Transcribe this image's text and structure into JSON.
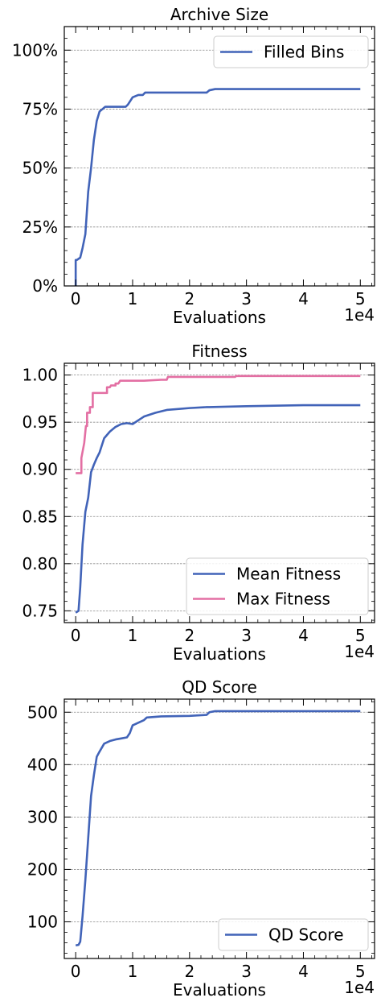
{
  "chart_data": [
    {
      "type": "line",
      "title": "Archive Size",
      "xlabel": "Evaluations",
      "x_offset_label": "1e4",
      "xlim": [
        -0.2,
        5.25
      ],
      "ylim": [
        0,
        110
      ],
      "x_ticks": [
        0,
        1,
        2,
        3,
        4,
        5
      ],
      "x_tick_labels": [
        "0",
        "1",
        "2",
        "3",
        "4",
        "5"
      ],
      "y_ticks": [
        0,
        25,
        50,
        75,
        100
      ],
      "y_tick_labels": [
        "0%",
        "25%",
        "50%",
        "75%",
        "100%"
      ],
      "grid": "horizontal-dashed",
      "legend": "top-right",
      "series": [
        {
          "name": "Filled Bins",
          "color": "#4163b8",
          "x": [
            0,
            0,
            0.02,
            0.08,
            0.12,
            0.17,
            0.22,
            0.27,
            0.32,
            0.37,
            0.42,
            0.47,
            0.52,
            0.6,
            0.7,
            0.8,
            0.88,
            0.92,
            1.0,
            1.1,
            1.18,
            1.22,
            1.5,
            2.0,
            2.3,
            2.35,
            2.45,
            3.0,
            4.0,
            5.0
          ],
          "y": [
            0,
            11,
            11,
            12,
            16,
            22,
            40,
            50,
            62,
            70,
            74,
            75,
            76,
            76,
            76,
            76,
            76,
            77,
            80,
            81,
            81,
            82,
            82,
            82,
            82,
            83,
            83.5,
            83.5,
            83.5,
            83.5
          ]
        }
      ]
    },
    {
      "type": "line",
      "title": "Fitness",
      "xlabel": "Evaluations",
      "x_offset_label": "1e4",
      "xlim": [
        -0.2,
        5.25
      ],
      "ylim": [
        0.7375,
        1.0125
      ],
      "x_ticks": [
        0,
        1,
        2,
        3,
        4,
        5
      ],
      "x_tick_labels": [
        "0",
        "1",
        "2",
        "3",
        "4",
        "5"
      ],
      "y_ticks": [
        0.75,
        0.8,
        0.85,
        0.9,
        0.95,
        1.0
      ],
      "y_tick_labels": [
        "0.75",
        "0.80",
        "0.85",
        "0.90",
        "0.95",
        "1.00"
      ],
      "grid": "horizontal-dashed",
      "legend": "bottom-right",
      "series": [
        {
          "name": "Mean Fitness",
          "color": "#4163b8",
          "x": [
            0,
            0.05,
            0.08,
            0.12,
            0.17,
            0.22,
            0.27,
            0.32,
            0.37,
            0.42,
            0.5,
            0.6,
            0.7,
            0.8,
            0.9,
            1.0,
            1.1,
            1.2,
            1.4,
            1.6,
            2.0,
            2.3,
            2.35,
            3.0,
            4.0,
            5.0
          ],
          "y": [
            0.748,
            0.75,
            0.775,
            0.82,
            0.855,
            0.87,
            0.897,
            0.905,
            0.912,
            0.918,
            0.933,
            0.94,
            0.945,
            0.948,
            0.949,
            0.948,
            0.952,
            0.956,
            0.96,
            0.963,
            0.965,
            0.966,
            0.966,
            0.967,
            0.968,
            0.968
          ]
        },
        {
          "name": "Max Fitness",
          "color": "#e36fa3",
          "x": [
            0,
            0.1,
            0.1,
            0.15,
            0.18,
            0.2,
            0.2,
            0.25,
            0.25,
            0.3,
            0.3,
            0.55,
            0.55,
            0.6,
            0.62,
            0.7,
            0.7,
            0.75,
            0.78,
            0.8,
            1.0,
            1.2,
            1.5,
            1.6,
            1.62,
            2.5,
            2.8,
            2.82,
            3.0,
            5.0
          ],
          "y": [
            0.896,
            0.896,
            0.912,
            0.928,
            0.946,
            0.946,
            0.96,
            0.96,
            0.966,
            0.966,
            0.981,
            0.981,
            0.987,
            0.987,
            0.989,
            0.989,
            0.991,
            0.991,
            0.994,
            0.994,
            0.994,
            0.994,
            0.995,
            0.995,
            0.998,
            0.998,
            0.998,
            0.999,
            0.999,
            0.999
          ]
        }
      ]
    },
    {
      "type": "line",
      "title": "QD Score",
      "xlabel": "Evaluations",
      "x_offset_label": "1e4",
      "xlim": [
        -0.2,
        5.25
      ],
      "ylim": [
        30,
        525
      ],
      "x_ticks": [
        0,
        1,
        2,
        3,
        4,
        5
      ],
      "x_tick_labels": [
        "0",
        "1",
        "2",
        "3",
        "4",
        "5"
      ],
      "y_ticks": [
        100,
        200,
        300,
        400,
        500
      ],
      "y_tick_labels": [
        "100",
        "200",
        "300",
        "400",
        "500"
      ],
      "grid": "horizontal-dashed",
      "legend": "bottom-right",
      "series": [
        {
          "name": "QD Score",
          "color": "#4163b8",
          "x": [
            0,
            0.05,
            0.08,
            0.12,
            0.17,
            0.22,
            0.27,
            0.32,
            0.37,
            0.42,
            0.5,
            0.6,
            0.7,
            0.8,
            0.9,
            0.95,
            1.0,
            1.1,
            1.2,
            1.25,
            1.5,
            2.0,
            2.3,
            2.35,
            2.45,
            3.0,
            4.0,
            5.0
          ],
          "y": [
            55,
            56,
            62,
            110,
            180,
            260,
            340,
            380,
            415,
            425,
            440,
            445,
            448,
            450,
            452,
            460,
            475,
            480,
            485,
            490,
            492,
            493,
            495,
            500,
            502,
            502,
            502,
            502
          ]
        }
      ]
    }
  ]
}
